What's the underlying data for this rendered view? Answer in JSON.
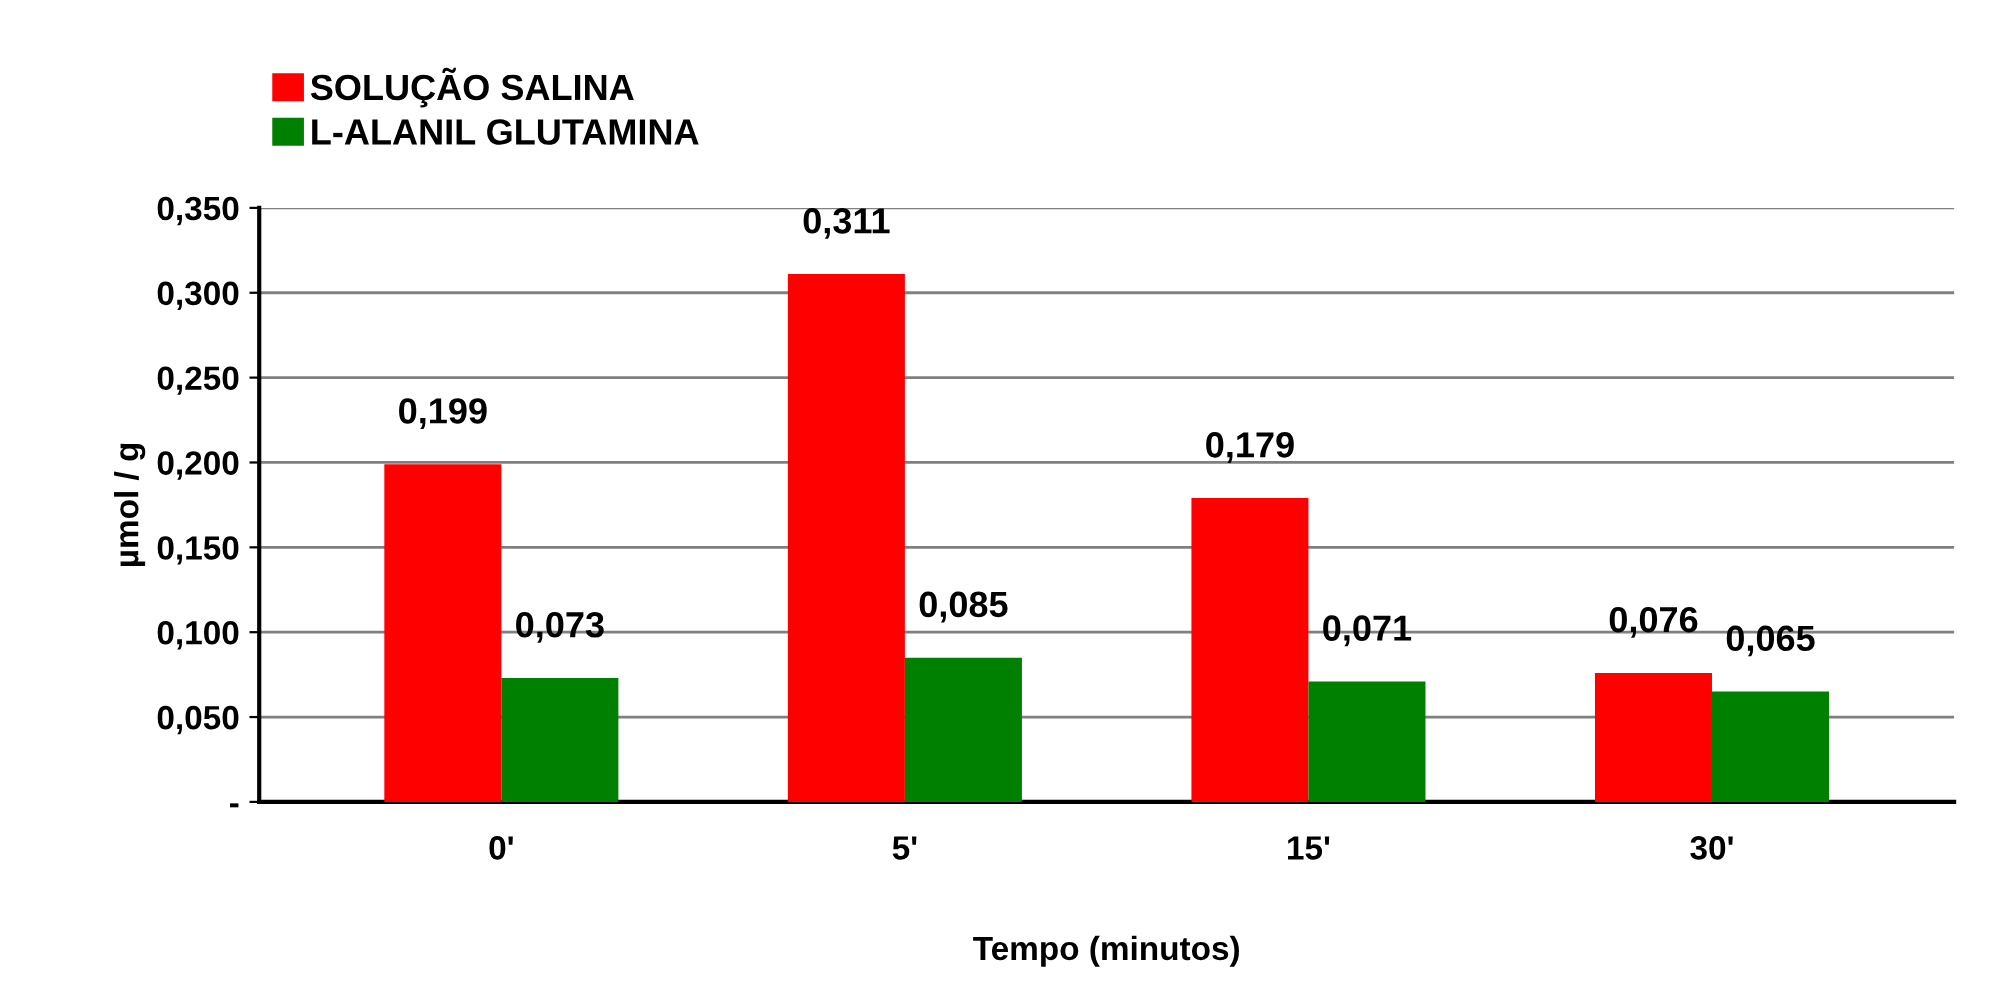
{
  "chart_data": {
    "type": "bar",
    "xlabel": "Tempo (minutos)",
    "ylabel": "µmol / g",
    "categories": [
      "0'",
      "5'",
      "15'",
      "30'"
    ],
    "series": [
      {
        "name": "SOLUÇÃO SALINA",
        "color": "#ff0000",
        "values": [
          0.199,
          0.311,
          0.179,
          0.076
        ],
        "value_labels": [
          "0,199",
          "0,311",
          "0,179",
          "0,076"
        ]
      },
      {
        "name": "L-ALANIL GLUTAMINA",
        "color": "#008000",
        "values": [
          0.073,
          0.085,
          0.071,
          0.065
        ],
        "value_labels": [
          "0,073",
          "0,085",
          "0,071",
          "0,065"
        ]
      }
    ],
    "ylim": [
      0,
      0.35
    ],
    "yticks": [
      {
        "value": 0,
        "label": "-"
      },
      {
        "value": 0.05,
        "label": "0,050"
      },
      {
        "value": 0.1,
        "label": "0,100"
      },
      {
        "value": 0.15,
        "label": "0,150"
      },
      {
        "value": 0.2,
        "label": "0,200"
      },
      {
        "value": 0.25,
        "label": "0,250"
      },
      {
        "value": 0.3,
        "label": "0,300"
      },
      {
        "value": 0.35,
        "label": "0,350"
      }
    ],
    "grid": "y",
    "legend": "top left"
  }
}
